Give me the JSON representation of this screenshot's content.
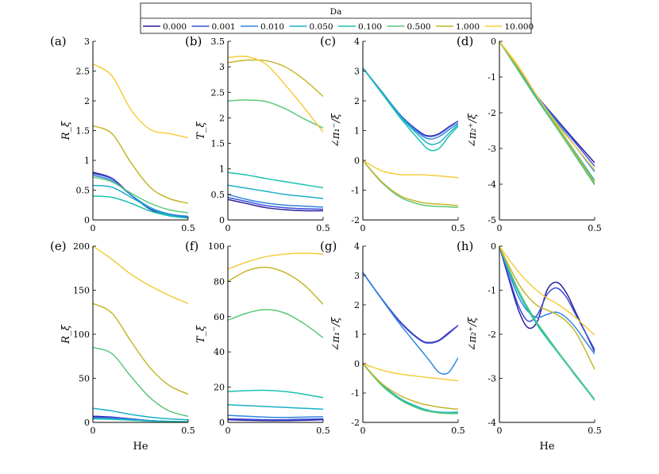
{
  "figure": {
    "legend_title": "Da",
    "series_names": [
      "0.000",
      "0.001",
      "0.010",
      "0.050",
      "0.100",
      "0.500",
      "1.000",
      "10.000"
    ],
    "colors": [
      "#2a1f9e",
      "#3d4ed9",
      "#2f86e0",
      "#1ab0c8",
      "#18c2b0",
      "#5cc87a",
      "#c4b62a",
      "#f4cd3c"
    ]
  },
  "chart_data": [
    {
      "id": "a",
      "type": "line",
      "panel_label": "(a)",
      "ylabel": "R_ξ",
      "xlabel": "",
      "xlim": [
        0,
        0.5
      ],
      "ylim": [
        0,
        3
      ],
      "xticks": [
        "0",
        "0.5"
      ],
      "yticks": [
        "0",
        "0.5",
        "1",
        "1.5",
        "2",
        "2.5",
        "3"
      ],
      "x": [
        0,
        0.1,
        0.2,
        0.3,
        0.4,
        0.5
      ],
      "series": [
        {
          "name": "0.000",
          "values": [
            0.8,
            0.7,
            0.42,
            0.18,
            0.07,
            0.04
          ]
        },
        {
          "name": "0.001",
          "values": [
            0.78,
            0.69,
            0.42,
            0.19,
            0.08,
            0.05
          ]
        },
        {
          "name": "0.010",
          "values": [
            0.75,
            0.66,
            0.42,
            0.21,
            0.1,
            0.06
          ]
        },
        {
          "name": "0.050",
          "values": [
            0.58,
            0.55,
            0.38,
            0.2,
            0.08,
            0.03
          ]
        },
        {
          "name": "0.100",
          "values": [
            0.4,
            0.38,
            0.28,
            0.15,
            0.07,
            0.03
          ]
        },
        {
          "name": "0.500",
          "values": [
            0.72,
            0.64,
            0.45,
            0.28,
            0.17,
            0.12
          ]
        },
        {
          "name": "1.000",
          "values": [
            1.58,
            1.45,
            0.96,
            0.55,
            0.36,
            0.28
          ]
        },
        {
          "name": "10.000",
          "values": [
            2.62,
            2.42,
            1.85,
            1.52,
            1.45,
            1.38
          ]
        }
      ]
    },
    {
      "id": "b",
      "type": "line",
      "panel_label": "(b)",
      "ylabel": "T_ξ",
      "xlabel": "",
      "xlim": [
        0,
        0.5
      ],
      "ylim": [
        0,
        3.5
      ],
      "xticks": [
        "0",
        "0.5"
      ],
      "yticks": [
        "0",
        "0.5",
        "1",
        "1.5",
        "2",
        "2.5",
        "3",
        "3.5"
      ],
      "x": [
        0,
        0.1,
        0.2,
        0.3,
        0.4,
        0.5
      ],
      "series": [
        {
          "name": "0.000",
          "values": [
            0.4,
            0.32,
            0.24,
            0.2,
            0.18,
            0.18
          ]
        },
        {
          "name": "0.001",
          "values": [
            0.44,
            0.36,
            0.28,
            0.24,
            0.22,
            0.21
          ]
        },
        {
          "name": "0.010",
          "values": [
            0.5,
            0.4,
            0.33,
            0.29,
            0.27,
            0.25
          ]
        },
        {
          "name": "0.050",
          "values": [
            0.68,
            0.62,
            0.56,
            0.5,
            0.46,
            0.42
          ]
        },
        {
          "name": "0.100",
          "values": [
            0.93,
            0.88,
            0.81,
            0.75,
            0.69,
            0.63
          ]
        },
        {
          "name": "0.500",
          "values": [
            2.33,
            2.35,
            2.32,
            2.18,
            1.98,
            1.8
          ]
        },
        {
          "name": "1.000",
          "values": [
            3.08,
            3.13,
            3.12,
            3.0,
            2.75,
            2.42
          ]
        },
        {
          "name": "10.000",
          "values": [
            3.18,
            3.2,
            3.05,
            2.65,
            2.2,
            1.72
          ]
        }
      ]
    },
    {
      "id": "c",
      "type": "line",
      "panel_label": "(c)",
      "ylabel": "∠π₁⁻/ξ",
      "xlabel": "",
      "xlim": [
        0,
        0.5
      ],
      "ylim": [
        -2,
        4
      ],
      "xticks": [
        "0",
        "0.5"
      ],
      "yticks": [
        "-2",
        "-1",
        "0",
        "1",
        "2",
        "3",
        "4"
      ],
      "x": [
        0,
        0.1,
        0.2,
        0.3,
        0.35,
        0.4,
        0.45,
        0.5
      ],
      "series": [
        {
          "name": "0.000",
          "values": [
            3.1,
            2.3,
            1.5,
            0.95,
            0.82,
            0.9,
            1.12,
            1.32
          ]
        },
        {
          "name": "0.001",
          "values": [
            3.1,
            2.3,
            1.5,
            0.93,
            0.8,
            0.88,
            1.1,
            1.32
          ]
        },
        {
          "name": "0.010",
          "values": [
            3.1,
            2.3,
            1.48,
            0.88,
            0.72,
            0.8,
            1.02,
            1.25
          ]
        },
        {
          "name": "0.050",
          "values": [
            3.1,
            2.28,
            1.45,
            0.8,
            0.55,
            0.6,
            0.9,
            1.2
          ]
        },
        {
          "name": "0.100",
          "values": [
            3.1,
            2.25,
            1.4,
            0.65,
            0.35,
            0.4,
            0.8,
            1.15
          ]
        },
        {
          "name": "0.500",
          "values": [
            0.0,
            -0.75,
            -1.25,
            -1.48,
            -1.53,
            -1.55,
            -1.56,
            -1.58
          ]
        },
        {
          "name": "1.000",
          "values": [
            0.0,
            -0.72,
            -1.2,
            -1.4,
            -1.45,
            -1.47,
            -1.49,
            -1.52
          ]
        },
        {
          "name": "10.000",
          "values": [
            0.0,
            -0.35,
            -0.48,
            -0.48,
            -0.5,
            -0.52,
            -0.55,
            -0.58
          ]
        }
      ]
    },
    {
      "id": "d",
      "type": "line",
      "panel_label": "(d)",
      "ylabel": "∠π₂⁺/ξ",
      "xlabel": "",
      "xlim": [
        0,
        0.5
      ],
      "ylim": [
        -5,
        0
      ],
      "xticks": [
        "0",
        "0.5"
      ],
      "yticks": [
        "-5",
        "-4",
        "-3",
        "-2",
        "-1",
        "0"
      ],
      "x": [
        0,
        0.1,
        0.2,
        0.3,
        0.4,
        0.5
      ],
      "series": [
        {
          "name": "0.000",
          "values": [
            0,
            -0.8,
            -1.55,
            -2.18,
            -2.8,
            -3.4
          ]
        },
        {
          "name": "0.001",
          "values": [
            0,
            -0.8,
            -1.56,
            -2.2,
            -2.85,
            -3.5
          ]
        },
        {
          "name": "0.010",
          "values": [
            0,
            -0.8,
            -1.58,
            -2.25,
            -2.95,
            -3.65
          ]
        },
        {
          "name": "0.050",
          "values": [
            0,
            -0.82,
            -1.62,
            -2.35,
            -3.12,
            -3.9
          ]
        },
        {
          "name": "0.100",
          "values": [
            0,
            -0.82,
            -1.63,
            -2.4,
            -3.2,
            -4.0
          ]
        },
        {
          "name": "0.500",
          "values": [
            0,
            -0.83,
            -1.65,
            -2.42,
            -3.22,
            -4.02
          ]
        },
        {
          "name": "1.000",
          "values": [
            0,
            -0.75,
            -1.55,
            -2.35,
            -3.15,
            -3.95
          ]
        },
        {
          "name": "10.000",
          "values": [
            0,
            -0.7,
            -1.55,
            -2.3,
            -2.95,
            -3.6
          ]
        }
      ]
    },
    {
      "id": "e",
      "type": "line",
      "panel_label": "(e)",
      "ylabel": "R_ξ",
      "xlabel": "He",
      "xlim": [
        0,
        0.5
      ],
      "ylim": [
        0,
        200
      ],
      "xticks": [
        "0",
        "0.5"
      ],
      "yticks": [
        "0",
        "50",
        "100",
        "150",
        "200"
      ],
      "x": [
        0,
        0.1,
        0.2,
        0.3,
        0.4,
        0.5
      ],
      "series": [
        {
          "name": "0.000",
          "values": [
            7,
            6,
            4,
            2,
            1,
            0.5
          ]
        },
        {
          "name": "0.001",
          "values": [
            6,
            5.5,
            4,
            2,
            1,
            0.5
          ]
        },
        {
          "name": "0.010",
          "values": [
            5,
            4.5,
            3.5,
            2,
            1.2,
            0.8
          ]
        },
        {
          "name": "0.050",
          "values": [
            16,
            13,
            9,
            6,
            4,
            3
          ]
        },
        {
          "name": "0.100",
          "values": [
            4,
            3.5,
            2.5,
            1.5,
            1,
            0.8
          ]
        },
        {
          "name": "0.500",
          "values": [
            85,
            78,
            52,
            28,
            13,
            7
          ]
        },
        {
          "name": "1.000",
          "values": [
            135,
            124,
            92,
            62,
            42,
            32
          ]
        },
        {
          "name": "10.000",
          "values": [
            200,
            185,
            168,
            155,
            144,
            135
          ]
        }
      ]
    },
    {
      "id": "f",
      "type": "line",
      "panel_label": "(f)",
      "ylabel": "T_ξ",
      "xlabel": "",
      "xlim": [
        0,
        0.5
      ],
      "ylim": [
        0,
        100
      ],
      "xticks": [
        "0",
        "0.5"
      ],
      "yticks": [
        "0",
        "20",
        "40",
        "60",
        "80",
        "100"
      ],
      "x": [
        0,
        0.1,
        0.2,
        0.3,
        0.4,
        0.5
      ],
      "series": [
        {
          "name": "0.000",
          "values": [
            1.5,
            1.2,
            1.0,
            1.0,
            1.2,
            1.5
          ]
        },
        {
          "name": "0.001",
          "values": [
            2,
            1.8,
            1.5,
            1.5,
            1.8,
            2
          ]
        },
        {
          "name": "0.010",
          "values": [
            4,
            3.5,
            3,
            2.8,
            3,
            3.2
          ]
        },
        {
          "name": "0.050",
          "values": [
            10,
            9.5,
            9,
            8.5,
            8,
            7.5
          ]
        },
        {
          "name": "0.100",
          "values": [
            17.5,
            18,
            18.2,
            17.5,
            16,
            14
          ]
        },
        {
          "name": "0.500",
          "values": [
            58,
            62,
            64,
            62,
            56,
            48
          ]
        },
        {
          "name": "1.000",
          "values": [
            80,
            86,
            88,
            85,
            78,
            67
          ]
        },
        {
          "name": "10.000",
          "values": [
            87,
            91,
            94,
            95.5,
            96,
            95.5
          ]
        }
      ]
    },
    {
      "id": "g",
      "type": "line",
      "panel_label": "(g)",
      "ylabel": "∠π₁⁻/ξ",
      "xlabel": "",
      "xlim": [
        0,
        0.5
      ],
      "ylim": [
        -2,
        4
      ],
      "xticks": [
        "0",
        "0.5"
      ],
      "yticks": [
        "-2",
        "-1",
        "0",
        "1",
        "2",
        "3",
        "4"
      ],
      "x": [
        0,
        0.1,
        0.2,
        0.3,
        0.35,
        0.4,
        0.45,
        0.5
      ],
      "series": [
        {
          "name": "0.000",
          "values": [
            3.1,
            2.2,
            1.4,
            0.82,
            0.72,
            0.8,
            1.05,
            1.3
          ]
        },
        {
          "name": "0.001",
          "values": [
            3.1,
            2.2,
            1.38,
            0.8,
            0.7,
            0.78,
            1.02,
            1.3
          ]
        },
        {
          "name": "0.010",
          "values": [
            3.1,
            2.18,
            1.3,
            0.5,
            0.1,
            -0.3,
            -0.3,
            0.2
          ]
        },
        {
          "name": "0.050",
          "values": [
            0.0,
            -0.7,
            -1.2,
            -1.5,
            -1.6,
            -1.65,
            -1.66,
            -1.65
          ]
        },
        {
          "name": "0.100",
          "values": [
            0.0,
            -0.72,
            -1.22,
            -1.52,
            -1.62,
            -1.67,
            -1.68,
            -1.66
          ]
        },
        {
          "name": "0.500",
          "values": [
            0.0,
            -0.75,
            -1.25,
            -1.55,
            -1.63,
            -1.68,
            -1.7,
            -1.7
          ]
        },
        {
          "name": "1.000",
          "values": [
            0.0,
            -0.68,
            -1.1,
            -1.35,
            -1.42,
            -1.48,
            -1.52,
            -1.55
          ]
        },
        {
          "name": "10.000",
          "values": [
            0.0,
            -0.22,
            -0.36,
            -0.44,
            -0.48,
            -0.51,
            -0.55,
            -0.58
          ]
        }
      ]
    },
    {
      "id": "h",
      "type": "line",
      "panel_label": "(h)",
      "ylabel": "∠π₂⁺/ξ",
      "xlabel": "He",
      "xlim": [
        0,
        0.5
      ],
      "ylim": [
        -4,
        0
      ],
      "xticks": [
        "0",
        "0.5"
      ],
      "yticks": [
        "-4",
        "-3",
        "-2",
        "-1",
        "0"
      ],
      "x": [
        0,
        0.05,
        0.1,
        0.15,
        0.2,
        0.25,
        0.3,
        0.35,
        0.4,
        0.45,
        0.5
      ],
      "series": [
        {
          "name": "0.000",
          "values": [
            0,
            -0.75,
            -1.45,
            -1.85,
            -1.7,
            -1.0,
            -0.82,
            -1.05,
            -1.5,
            -1.95,
            -2.4
          ]
        },
        {
          "name": "0.001",
          "values": [
            0,
            -0.7,
            -1.35,
            -1.7,
            -1.55,
            -1.1,
            -0.95,
            -1.15,
            -1.55,
            -1.95,
            -2.35
          ]
        },
        {
          "name": "0.010",
          "values": [
            0,
            -0.6,
            -1.15,
            -1.48,
            -1.62,
            -1.55,
            -1.5,
            -1.62,
            -1.85,
            -2.15,
            -2.45
          ]
        },
        {
          "name": "0.050",
          "values": [
            0,
            -0.55,
            -1.05,
            -1.45,
            -1.78,
            -2.08,
            -2.36,
            -2.64,
            -2.92,
            -3.2,
            -3.48
          ]
        },
        {
          "name": "0.100",
          "values": [
            0,
            -0.55,
            -1.05,
            -1.45,
            -1.8,
            -2.1,
            -2.38,
            -2.66,
            -2.94,
            -3.22,
            -3.5
          ]
        },
        {
          "name": "0.500",
          "values": [
            0,
            -0.52,
            -1.0,
            -1.4,
            -1.75,
            -2.05,
            -2.35,
            -2.65,
            -2.95,
            -3.22,
            -3.48
          ]
        },
        {
          "name": "1.000",
          "values": [
            0,
            -0.45,
            -0.85,
            -1.15,
            -1.35,
            -1.45,
            -1.55,
            -1.7,
            -1.95,
            -2.35,
            -2.8
          ]
        },
        {
          "name": "10.000",
          "values": [
            0,
            -0.3,
            -0.58,
            -0.82,
            -1.02,
            -1.18,
            -1.3,
            -1.45,
            -1.62,
            -1.82,
            -2.02
          ]
        }
      ]
    }
  ]
}
